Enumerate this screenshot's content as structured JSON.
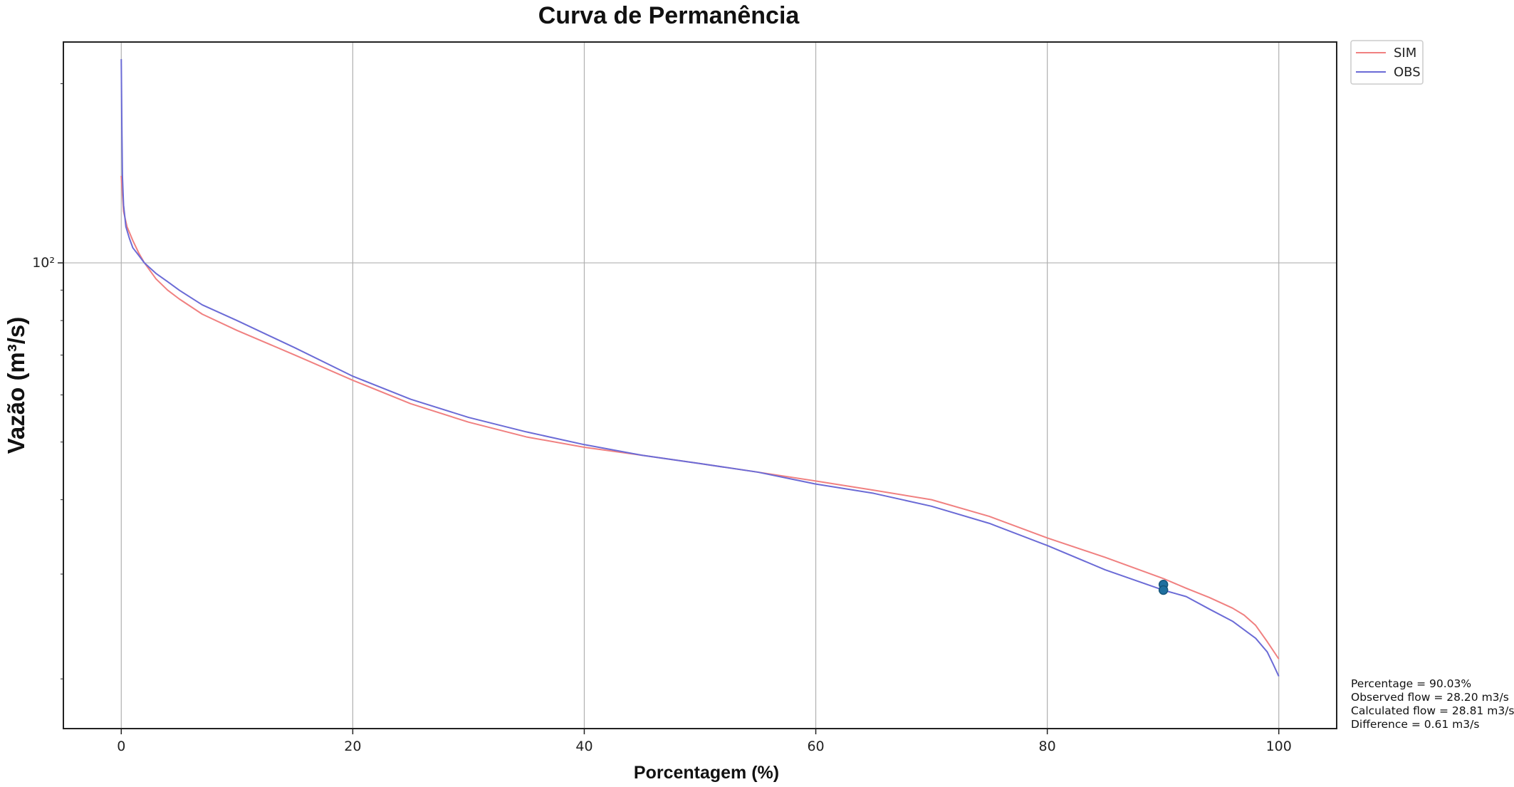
{
  "chart_data": {
    "type": "line",
    "title": "Curva de Permanência",
    "xlabel": "Porcentagem (%)",
    "ylabel": "Vazão (m³/s)",
    "xscale": "linear",
    "yscale": "log",
    "xlim": [
      -5,
      105
    ],
    "ylim": [
      16.5,
      235
    ],
    "xticks": [
      0,
      20,
      40,
      60,
      80,
      100
    ],
    "xtick_labels": [
      "0",
      "20",
      "40",
      "60",
      "80",
      "100"
    ],
    "yticks": [
      100
    ],
    "ytick_labels": [
      "10²"
    ],
    "grid": true,
    "legend_position": "upper-right-outside",
    "series": [
      {
        "name": "SIM",
        "color": "#f08080",
        "x": [
          0,
          0.2,
          0.5,
          1,
          1.5,
          2,
          3,
          4,
          5,
          7,
          10,
          15,
          20,
          25,
          30,
          35,
          40,
          45,
          50,
          55,
          60,
          65,
          70,
          75,
          80,
          85,
          90,
          92,
          94,
          96,
          97,
          98,
          99,
          100
        ],
        "y": [
          140,
          122,
          115,
          109,
          104,
          100,
          94,
          90,
          87,
          82,
          77,
          70,
          63.5,
          58,
          54,
          51,
          49,
          47.5,
          46,
          44.5,
          43,
          41.5,
          40,
          37.5,
          34.5,
          32,
          29.5,
          28.4,
          27.4,
          26.3,
          25.6,
          24.6,
          23.1,
          21.6
        ]
      },
      {
        "name": "OBS",
        "color": "#6b6bd6",
        "x": [
          0,
          0.05,
          0.1,
          0.2,
          0.4,
          0.7,
          1,
          1.5,
          2,
          3,
          4,
          5,
          7,
          10,
          15,
          20,
          25,
          30,
          35,
          40,
          45,
          50,
          55,
          60,
          65,
          70,
          75,
          80,
          85,
          90,
          92,
          94,
          96,
          98,
          99,
          99.5,
          100
        ],
        "y": [
          220,
          170,
          140,
          125,
          115,
          110,
          106,
          103,
          100,
          96,
          93,
          90,
          85,
          80,
          72,
          64.5,
          59,
          55,
          52,
          49.5,
          47.5,
          46,
          44.5,
          42.5,
          41,
          39,
          36.5,
          33.5,
          30.5,
          28.2,
          27.5,
          26.2,
          25,
          23.4,
          22.2,
          21.2,
          20.2
        ]
      }
    ],
    "highlight_points": [
      {
        "x": 90.03,
        "y": 28.81
      },
      {
        "x": 90.03,
        "y": 28.2
      }
    ],
    "annotation": [
      "Percentage = 90.03%",
      "Observed flow = 28.20 m3/s",
      "Calculated flow = 28.81 m3/s",
      "Difference = 0.61 m3/s"
    ]
  }
}
